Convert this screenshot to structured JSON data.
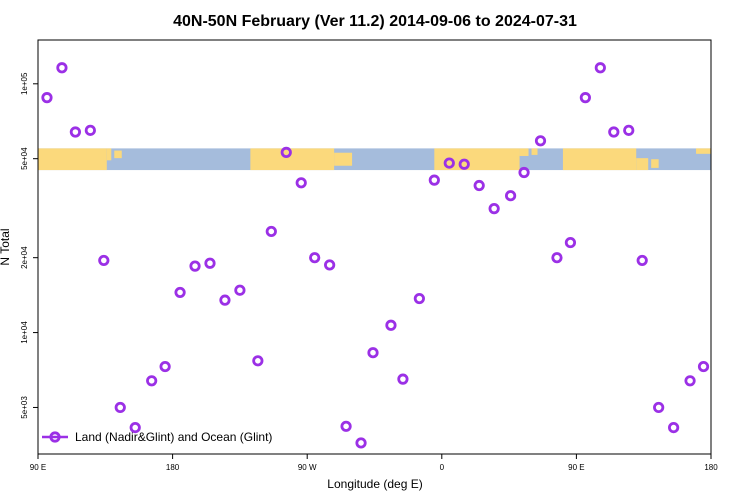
{
  "chart_data": {
    "type": "scatter",
    "title": "40N-50N February (Ver 11.2)   2014-09-06 to 2024-07-31",
    "xlabel": "Longitude (deg E)",
    "ylabel": "N Total",
    "y_scale": "log",
    "x_range": [
      90,
      540
    ],
    "y_range": [
      3250,
      150000
    ],
    "x_ticks": [
      {
        "value": 90,
        "label": "90 E"
      },
      {
        "value": 180,
        "label": "180"
      },
      {
        "value": 270,
        "label": "90 W"
      },
      {
        "value": 360,
        "label": "0"
      },
      {
        "value": 450,
        "label": "90 E"
      },
      {
        "value": 540,
        "label": "180"
      }
    ],
    "y_ticks": [
      {
        "value": 5000,
        "label": "5e+03"
      },
      {
        "value": 10000,
        "label": "1e+04"
      },
      {
        "value": 20000,
        "label": "2e+04"
      },
      {
        "value": 50000,
        "label": "5e+04"
      },
      {
        "value": 100000,
        "label": "1e+05"
      }
    ],
    "land_band": {
      "y_min": 45000,
      "y_max": 55000
    },
    "legend": {
      "position": "bottom-left",
      "label": "Land (Nadir&Glint) and Ocean (Glint)"
    },
    "colors": {
      "series": "#9b30e6",
      "ocean": "#a5bcdc",
      "land": "#fbd97c"
    },
    "series": [
      {
        "points": [
          [
            96,
            88000
          ],
          [
            106,
            116000
          ],
          [
            115,
            64000
          ],
          [
            125,
            65000
          ],
          [
            134,
            19500
          ],
          [
            145,
            5000
          ],
          [
            155,
            4150
          ],
          [
            166,
            6400
          ],
          [
            175,
            7300
          ],
          [
            185,
            14500
          ],
          [
            195,
            18500
          ],
          [
            205,
            19000
          ],
          [
            215,
            13500
          ],
          [
            225,
            14800
          ],
          [
            237,
            7700
          ],
          [
            246,
            25500
          ],
          [
            256,
            53000
          ],
          [
            266,
            40000
          ],
          [
            275,
            20000
          ],
          [
            285,
            18700
          ],
          [
            296,
            4200
          ],
          [
            306,
            3600
          ],
          [
            314,
            8300
          ],
          [
            326,
            10700
          ],
          [
            334,
            6500
          ],
          [
            345,
            13700
          ],
          [
            355,
            41000
          ],
          [
            365,
            48000
          ],
          [
            375,
            47500
          ],
          [
            385,
            39000
          ],
          [
            395,
            31500
          ],
          [
            406,
            35500
          ],
          [
            415,
            44000
          ],
          [
            426,
            59000
          ],
          [
            437,
            20000
          ],
          [
            446,
            23000
          ],
          [
            456,
            88000
          ],
          [
            466,
            116000
          ],
          [
            475,
            64000
          ],
          [
            485,
            65000
          ],
          [
            494,
            19500
          ],
          [
            505,
            5000
          ],
          [
            515,
            4150
          ],
          [
            526,
            6400
          ],
          [
            535,
            7300
          ]
        ]
      }
    ]
  }
}
